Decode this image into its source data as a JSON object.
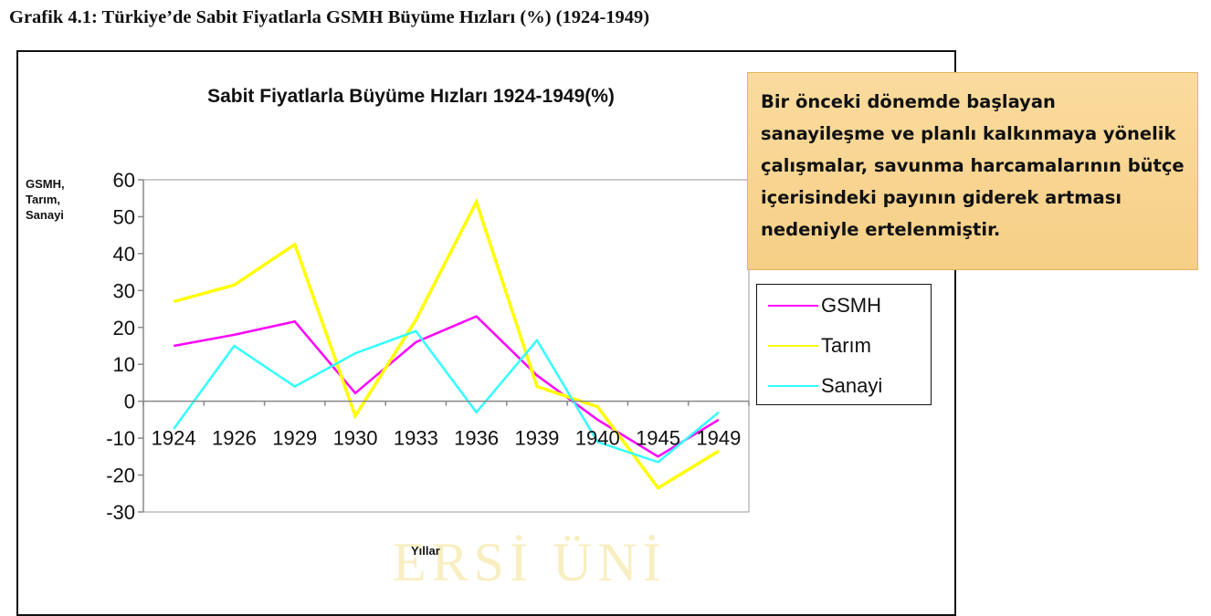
{
  "page_heading": "Grafik 4.1:  Türkiye’de Sabit Fiyatlarla GSMH Büyüme Hızları (%) (1924-1949)",
  "watermark": "ERSİ ÜNİ",
  "note": {
    "text": "Bir önceki dönemde başlayan sanayileşme ve planlı kalkınmaya yönelik çalışmalar, savunma harcamalarının bütçe içerisindeki payının giderek artması nedeniyle ertelenmiştir."
  },
  "chart_data": {
    "type": "line",
    "title": "Sabit Fiyatlarla Büyüme Hızları 1924-1949(%)",
    "ylabel_lines": [
      "GSMH,",
      "Tarım,",
      "Sanayi"
    ],
    "xlabel": "Yıllar",
    "categories": [
      "1924",
      "1926",
      "1929",
      "1930",
      "1933",
      "1936",
      "1939",
      "1940",
      "1945",
      "1949"
    ],
    "ylim": [
      -30,
      60
    ],
    "yticks": [
      60,
      50,
      40,
      30,
      20,
      10,
      0,
      -10,
      -20,
      -30
    ],
    "grid": false,
    "legend_position": "right",
    "series": [
      {
        "name": "GSMH",
        "color": "#ff00ff",
        "values": [
          15,
          18,
          21.6,
          2.2,
          16,
          23,
          7,
          -5,
          -15,
          -5
        ]
      },
      {
        "name": "Tarım",
        "color": "#ffff00",
        "values": [
          27,
          31.5,
          42.5,
          -4,
          22,
          54,
          4,
          -1.5,
          -23.5,
          -13.5
        ]
      },
      {
        "name": "Sanayi",
        "color": "#33ffff",
        "values": [
          -7.5,
          15,
          4,
          13,
          19,
          -3,
          16.5,
          -11,
          -16.5,
          -3
        ]
      }
    ]
  }
}
